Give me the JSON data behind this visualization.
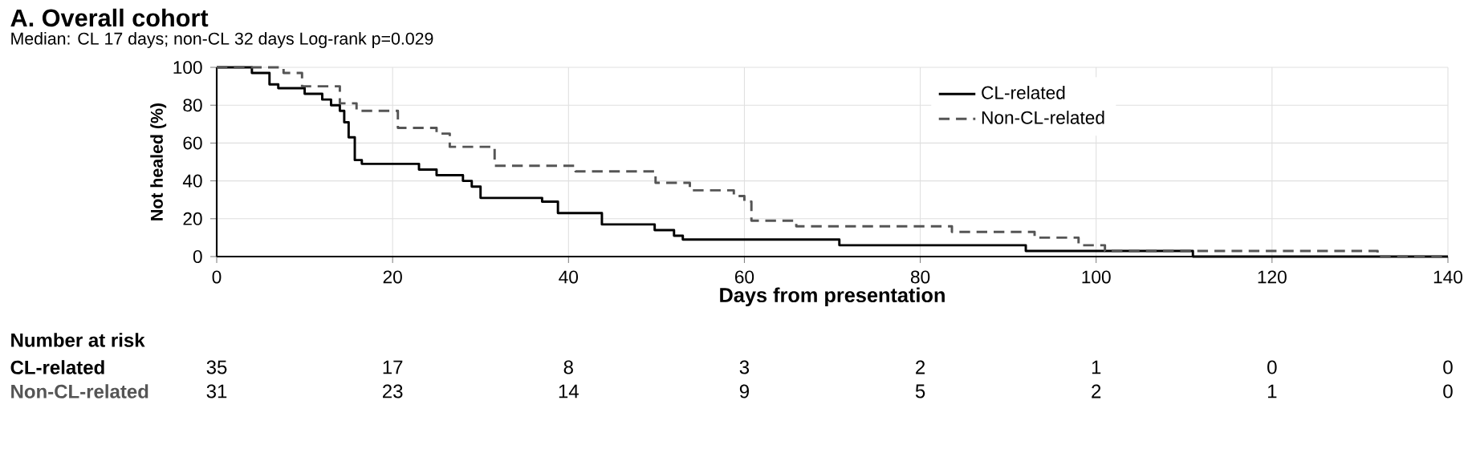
{
  "chart_data": {
    "type": "step",
    "title": "A. Overall cohort",
    "subtitle": "Median: CL 17 days; non-CL 32 days   Log-rank p=0.029",
    "xlabel": "Days from presentation",
    "ylabel": "Not healed (%)",
    "xlim": [
      0,
      140
    ],
    "xticks": [
      0,
      20,
      40,
      60,
      80,
      100,
      120,
      140
    ],
    "ylim": [
      0,
      100
    ],
    "yticks": [
      0,
      20,
      40,
      60,
      80,
      100
    ],
    "grid": true,
    "legend": "top right",
    "series": [
      {
        "name": "CL-related",
        "color": "#000000",
        "line_style": "solid",
        "x": [
          0,
          4,
          6,
          7,
          10,
          12,
          13,
          14,
          14.5,
          15,
          15.7,
          16.5,
          23,
          25,
          28,
          29,
          30,
          37,
          38.8,
          43.8,
          49.8,
          52,
          53,
          70.8,
          92,
          111,
          140
        ],
        "values": [
          100,
          97,
          91,
          89,
          86,
          83,
          80,
          77,
          71,
          63,
          51,
          49,
          46,
          43,
          40,
          37,
          31,
          29,
          23,
          17,
          14,
          11,
          9,
          6,
          3,
          0,
          0
        ]
      },
      {
        "name": "Non-CL-related",
        "color": "#555555",
        "line_style": "dashed",
        "x": [
          0,
          7.6,
          9.7,
          14,
          15.9,
          20.6,
          25,
          26.5,
          31.6,
          40.8,
          49.9,
          53.8,
          58.8,
          60,
          60.8,
          65.9,
          83.6,
          93,
          98,
          101,
          132,
          140
        ],
        "values": [
          100,
          97,
          90,
          81,
          77,
          68,
          65,
          58,
          48,
          45,
          39,
          35,
          32,
          29,
          19,
          16,
          13,
          10,
          6,
          3,
          0,
          0
        ]
      }
    ],
    "annotations": [
      "Number at risk",
      "CL-related",
      "35",
      "17",
      "8",
      "3",
      "2",
      "1",
      "0",
      "0",
      "Non-CL-related",
      "31",
      "23",
      "14",
      "9",
      "5",
      "2",
      "1",
      "0"
    ]
  }
}
